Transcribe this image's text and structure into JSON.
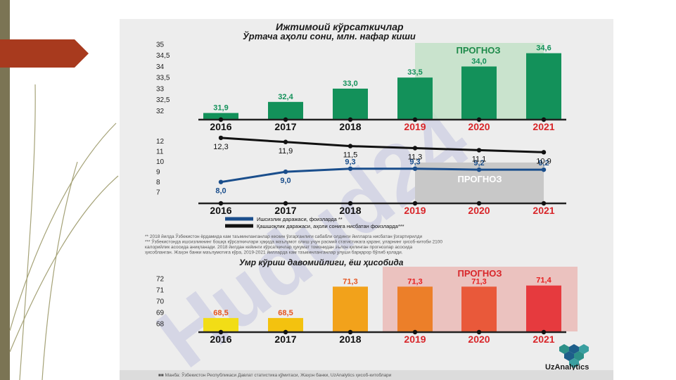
{
  "slide": {
    "colors": {
      "side_bar": "#7b7454",
      "arrow": "#a83a1e",
      "lines": "#a5a277"
    }
  },
  "infographic": {
    "title": "Ижтимоий кўрсаткичлар",
    "brand": "UzAnalytics",
    "watermark": "Hudud24",
    "footnotes": [
      "**  2018 йилда Ўзбекистон ёрдамида кам таъминланганлар кескин ўзгарганлиги сабабли олдинги йилларга нисбатан ўзгартирилди",
      "***  Ўзбекистонда ишсизликнинг бошқа кўрсаткичлари ҳақида маълумот олиш учун расмий статистикага қаранг, уларнинг ҳисоб-китоби 2100",
      "калорийлик асосида аниқланади. 2018 йилдан кейинги кўрсаткичлар ҳукумат томонидан эълон қилинган прогнозлар асосида",
      "ҳисобланган. Жаҳон банки маълумотига кўра, 2019-2021 йилларда кам таъминланганлар улуши барқарор бўлиб қолади."
    ],
    "source": "■■ Манба: Ўзбекистон Республикаси Давлат статистика қўмитаси, Жаҳон банки, UzAnalytics ҳисоб-китоблари"
  },
  "chart_data": [
    {
      "type": "bar",
      "title": "Ўртача аҳоли сони, млн. нафар киши",
      "categories": [
        "2016",
        "2017",
        "2018",
        "2019",
        "2020",
        "2021"
      ],
      "values": [
        31.9,
        32.4,
        33.0,
        33.5,
        34.0,
        34.6
      ],
      "value_labels": [
        "31,9",
        "32,4",
        "33,0",
        "33,5",
        "34,0",
        "34,6"
      ],
      "ylim": [
        31.6,
        35
      ],
      "yticks": [
        32,
        32.5,
        33,
        33.5,
        34,
        34.5,
        35
      ],
      "ytick_labels": [
        "32",
        "32,5",
        "33",
        "33,5",
        "34",
        "34,5",
        "35"
      ],
      "forecast_label": "ПРОГНОЗ",
      "forecast_from": "2019",
      "bar_color": "#13915a",
      "forecast_fill": "#bfe0c4"
    },
    {
      "type": "line",
      "categories": [
        "2016",
        "2017",
        "2018",
        "2019",
        "2020",
        "2021"
      ],
      "series": [
        {
          "name": "Ишсизлик даражаси, фоизларда **",
          "values": [
            8.0,
            9.0,
            9.3,
            9.3,
            9.2,
            9.2
          ],
          "value_labels": [
            "8,0",
            "9,0",
            "9,3",
            "9,3",
            "9,2",
            "9,2"
          ],
          "color": "#1a4e8c"
        },
        {
          "name": "Қашшоқлик даражаси, аҳоли сонига нисбатан фоизларда***",
          "values": [
            12.3,
            11.9,
            11.5,
            11.3,
            11.1,
            10.9
          ],
          "value_labels": [
            "12,3",
            "11,9",
            "11,5",
            "11,3",
            "11,1",
            "10,9"
          ],
          "color": "#111111"
        }
      ],
      "ylim": [
        6.4,
        12.5
      ],
      "yticks": [
        7,
        8,
        9,
        10,
        11,
        12
      ],
      "ytick_labels": [
        "7",
        "8",
        "9",
        "10",
        "11",
        "12"
      ],
      "forecast_label": "ПРОГНОЗ",
      "forecast_from": "2019",
      "forecast_fill": "#c8c8c8"
    },
    {
      "type": "bar",
      "title": "Умр кўриш давомийлиги, ёш ҳисобида",
      "categories": [
        "2016",
        "2017",
        "2018",
        "2019",
        "2020",
        "2021"
      ],
      "values": [
        68.5,
        68.5,
        71.3,
        71.3,
        71.3,
        71.4
      ],
      "value_labels": [
        "68,5",
        "68,5",
        "71,3",
        "71,3",
        "71,3",
        "71,4"
      ],
      "ylim": [
        67.3,
        72.2
      ],
      "yticks": [
        68,
        69,
        70,
        71,
        72
      ],
      "ytick_labels": [
        "68",
        "69",
        "70",
        "71",
        "72"
      ],
      "forecast_label": "ПРОГНОЗ",
      "forecast_from": "2019",
      "bar_colors": [
        "#f2dd16",
        "#f3c20f",
        "#f2a21b",
        "#ec7f29",
        "#e9593a",
        "#e63a3e"
      ],
      "label_colors": [
        "#e55520",
        "#e55520",
        "#e55520",
        "#e62020",
        "#e62020",
        "#e62020"
      ],
      "forecast_fill": "#ebc2bf"
    }
  ],
  "colors": {
    "year_hist": "#111111",
    "year_forecast": "#d8262a",
    "forecast_green_text": "#1e8a4a",
    "forecast_red_text": "#d8262a",
    "axis": "#222222"
  }
}
